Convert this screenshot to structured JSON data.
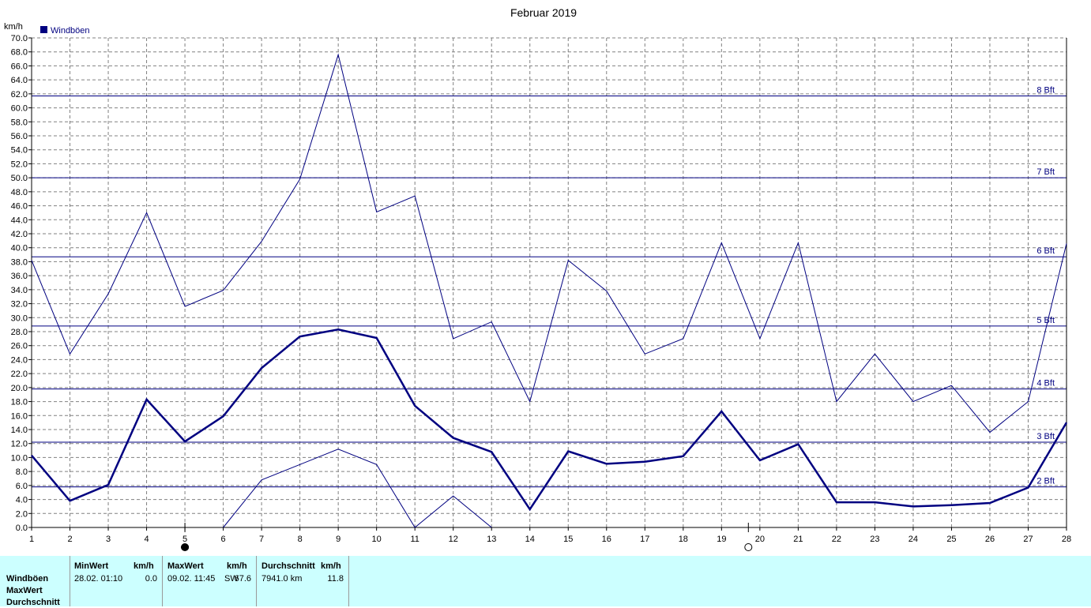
{
  "chart_data": {
    "type": "line",
    "title": "Februar 2019",
    "ylabel": "km/h",
    "xlabel": "",
    "ylim": [
      0,
      70
    ],
    "y_tick_step": 2,
    "y_tick_labels": [
      "0.0",
      "2.0",
      "4.0",
      "6.0",
      "8.0",
      "10.0",
      "12.0",
      "14.0",
      "16.0",
      "18.0",
      "20.0",
      "22.0",
      "24.0",
      "26.0",
      "28.0",
      "30.0",
      "32.0",
      "34.0",
      "36.0",
      "38.0",
      "40.0",
      "42.0",
      "44.0",
      "46.0",
      "48.0",
      "50.0",
      "52.0",
      "54.0",
      "56.0",
      "58.0",
      "60.0",
      "62.0",
      "64.0",
      "66.0",
      "68.0",
      "70.0"
    ],
    "x": [
      1,
      2,
      3,
      4,
      5,
      6,
      7,
      8,
      9,
      10,
      11,
      12,
      13,
      14,
      15,
      16,
      17,
      18,
      19,
      20,
      21,
      22,
      23,
      24,
      25,
      26,
      27,
      28
    ],
    "x_tick_labels": [
      "1",
      "2",
      "3",
      "4",
      "5",
      "6",
      "7",
      "8",
      "9",
      "10",
      "11",
      "12",
      "13",
      "14",
      "15",
      "16",
      "17",
      "18",
      "19",
      "20",
      "21",
      "22",
      "23",
      "24",
      "25",
      "26",
      "27",
      "28"
    ],
    "legend": {
      "label": "Windböen",
      "color": "#000080",
      "position": "top-left"
    },
    "grid": true,
    "series": [
      {
        "name": "Windböen",
        "role": "average",
        "color": "#000080",
        "values": [
          10.3,
          3.8,
          6.1,
          18.3,
          12.3,
          15.9,
          22.8,
          27.3,
          28.3,
          27.1,
          17.4,
          12.8,
          10.8,
          2.6,
          10.9,
          9.1,
          9.4,
          10.2,
          16.6,
          9.6,
          11.9,
          3.6,
          3.6,
          3.0,
          3.2,
          3.5,
          5.7,
          15.0
        ]
      },
      {
        "role": "max",
        "color": "#000080",
        "values": [
          38.2,
          24.8,
          33.4,
          45.0,
          31.6,
          33.9,
          40.9,
          49.8,
          67.6,
          45.1,
          47.4,
          27.0,
          29.4,
          18.0,
          38.2,
          33.8,
          24.8,
          27.0,
          40.7,
          27.0,
          40.7,
          18.0,
          24.8,
          18.0,
          20.3,
          13.6,
          18.0,
          40.6
        ]
      },
      {
        "role": "min",
        "color": "#000080",
        "values": [
          null,
          null,
          null,
          null,
          null,
          0.0,
          6.8,
          9.0,
          11.2,
          9.0,
          0.0,
          4.5,
          0.0,
          null,
          null,
          null,
          null,
          null,
          null,
          null,
          null,
          null,
          null,
          null,
          null,
          null,
          null,
          null
        ]
      }
    ],
    "reference_lines": [
      {
        "label": "2 Bft",
        "value": 5.8
      },
      {
        "label": "3 Bft",
        "value": 12.2
      },
      {
        "label": "4 Bft",
        "value": 19.8
      },
      {
        "label": "5 Bft",
        "value": 28.8
      },
      {
        "label": "6 Bft",
        "value": 38.7
      },
      {
        "label": "7 Bft",
        "value": 50.0
      },
      {
        "label": "8 Bft",
        "value": 61.7
      }
    ],
    "moon_phases": [
      {
        "day": 5,
        "phase": "new-moon"
      },
      {
        "day": 19.7,
        "phase": "full-moon"
      }
    ]
  },
  "table": {
    "row_labels": [
      "Windböen",
      "MaxWert",
      "Durchschnitt"
    ],
    "headers": {
      "min_title": "MinWert",
      "min_unit": "km/h",
      "max_title": "MaxWert",
      "max_unit": "km/h",
      "avg_title": "Durchschnitt",
      "avg_unit": "km/h"
    },
    "row1": {
      "min_date": "28.02.  01:10",
      "min_value": "0.0",
      "max_date": "09.02.  11:45",
      "max_dir": "SW",
      "max_value": "67.6",
      "avg_distance": "7941.0 km",
      "avg_value": "11.8"
    }
  }
}
